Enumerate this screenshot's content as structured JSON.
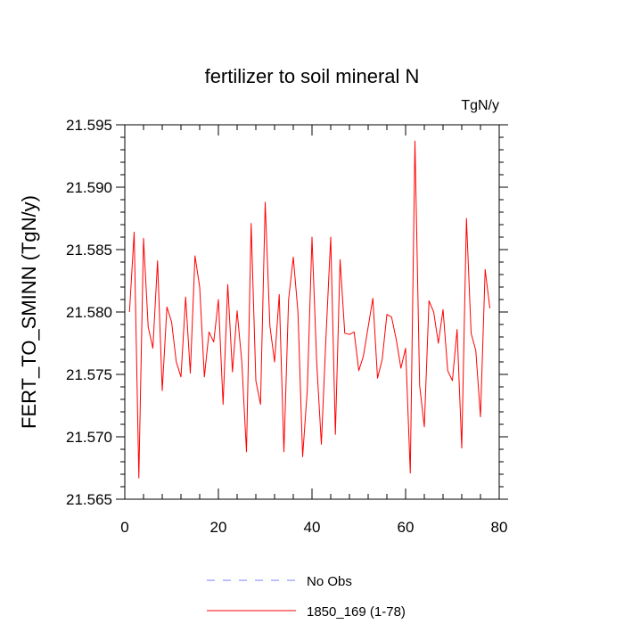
{
  "chart_data": {
    "type": "line",
    "title": "fertilizer to soil mineral N",
    "units": "TgN/y",
    "xlabel": "",
    "ylabel": "FERT_TO_SMINN  (TgN/y)",
    "xlim": [
      0,
      80
    ],
    "ylim": [
      21.565,
      21.595
    ],
    "x_ticks": [
      0,
      20,
      40,
      60,
      80
    ],
    "x_tick_labels": [
      "0",
      "20",
      "40",
      "60",
      "80"
    ],
    "y_ticks": [
      21.565,
      21.57,
      21.575,
      21.58,
      21.585,
      21.59,
      21.595
    ],
    "y_tick_labels": [
      "21.565",
      "21.570",
      "21.575",
      "21.580",
      "21.585",
      "21.590",
      "21.595"
    ],
    "grid": false,
    "legend_position": "bottom",
    "series": [
      {
        "name": "1850_169 (1-78)",
        "color": "#ff0000",
        "x": [
          1,
          2,
          3,
          4,
          5,
          6,
          7,
          8,
          9,
          10,
          11,
          12,
          13,
          14,
          15,
          16,
          17,
          18,
          19,
          20,
          21,
          22,
          23,
          24,
          25,
          26,
          27,
          28,
          29,
          30,
          31,
          32,
          33,
          34,
          35,
          36,
          37,
          38,
          39,
          40,
          41,
          42,
          43,
          44,
          45,
          46,
          47,
          48,
          49,
          50,
          51,
          52,
          53,
          54,
          55,
          56,
          57,
          58,
          59,
          60,
          61,
          62,
          63,
          64,
          65,
          66,
          67,
          68,
          69,
          70,
          71,
          72,
          73,
          74,
          75,
          76,
          77,
          78
        ],
        "values": [
          21.58,
          21.5864,
          21.5667,
          21.5859,
          21.5788,
          21.5771,
          21.5841,
          21.5737,
          21.5804,
          21.5792,
          21.576,
          21.5748,
          21.5812,
          21.5751,
          21.5845,
          21.582,
          21.5748,
          21.5784,
          21.5776,
          21.581,
          21.5726,
          21.5822,
          21.5752,
          21.5801,
          21.576,
          21.5688,
          21.5871,
          21.5745,
          21.5726,
          21.5888,
          21.5789,
          21.576,
          21.5814,
          21.5688,
          21.581,
          21.5844,
          21.58,
          21.5684,
          21.5738,
          21.586,
          21.576,
          21.5694,
          21.5781,
          21.586,
          21.5702,
          21.5842,
          21.5783,
          21.5782,
          21.5784,
          21.5753,
          21.5765,
          21.5788,
          21.5811,
          21.5747,
          21.5762,
          21.5798,
          21.5796,
          21.5778,
          21.5755,
          21.5771,
          21.5671,
          21.5937,
          21.5741,
          21.5708,
          21.5809,
          21.58,
          21.5775,
          21.5802,
          21.5753,
          21.5745,
          21.5786,
          21.5691,
          21.5875,
          21.5783,
          21.5769,
          21.5716,
          21.5834,
          21.5803
        ]
      },
      {
        "name": "No Obs",
        "color": "#7f7fff",
        "style": "dashed",
        "x": [],
        "values": []
      }
    ]
  }
}
